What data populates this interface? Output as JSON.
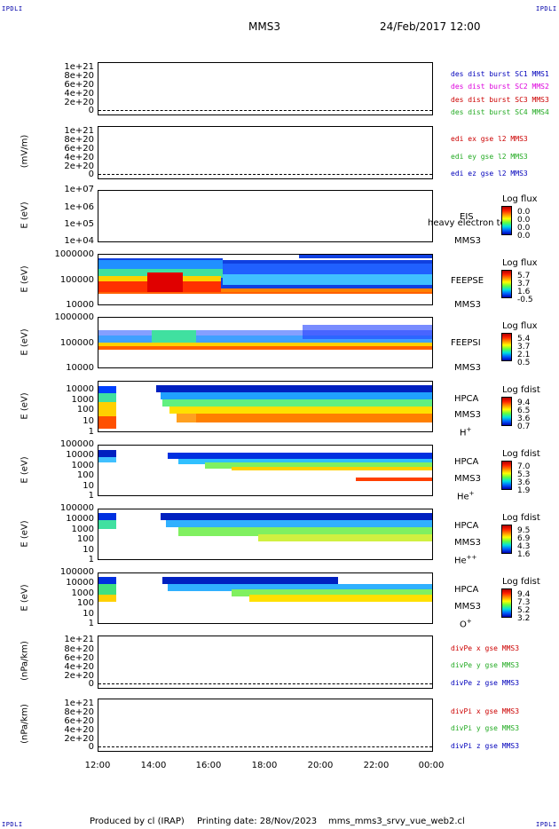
{
  "corners": {
    "tl": "IPDLI",
    "tr": "IPDLI",
    "bl": "IPDLI",
    "br": "IPDLI"
  },
  "header": {
    "spacecraft": "MMS3",
    "date": "24/Feb/2017 12:00"
  },
  "footer": {
    "produced": "Produced by cl (IRAP)",
    "printing": "Printing date: 28/Nov/2023",
    "file": "mms_mms3_srvy_vue_web2.cl"
  },
  "x_axis": {
    "ticks": [
      "12:00",
      "14:00",
      "16:00",
      "18:00",
      "20:00",
      "22:00",
      "00:00"
    ]
  },
  "colors": {
    "red": "#cc0000",
    "magenta": "#dd00dd",
    "blue": "#0000bb",
    "green": "#22aa22"
  },
  "panels": [
    {
      "id": "des",
      "ylabel": "",
      "yticks": [
        "1e+21",
        "8e+20",
        "6e+20",
        "4e+20",
        "2e+20",
        "0"
      ],
      "legend": [
        {
          "text": "des dist burst SC1 MMS1",
          "color": "#0000bb"
        },
        {
          "text": "des dist burst SC2 MMS2",
          "color": "#dd00dd"
        },
        {
          "text": "des dist burst SC3 MMS3",
          "color": "#cc0000"
        },
        {
          "text": "des dist burst SC4 MMS4",
          "color": "#22aa22"
        }
      ]
    },
    {
      "id": "edi",
      "ylabel": "(mV/m)",
      "yticks": [
        "1e+21",
        "8e+20",
        "6e+20",
        "4e+20",
        "2e+20",
        "0"
      ],
      "legend": [
        {
          "text": "edi ex gse l2 MMS3",
          "color": "#cc0000"
        },
        {
          "text": "edi ey gse l2 MMS3",
          "color": "#22aa22"
        },
        {
          "text": "edi ez gse l2 MMS3",
          "color": "#0000bb"
        }
      ]
    },
    {
      "id": "eis",
      "ylabel": "E (eV)",
      "yticks": [
        "1e+07",
        "1e+06",
        "1e+05",
        "1e+04"
      ],
      "instrument": [
        "EIS",
        "MMS3"
      ],
      "overlay": "heavy electron to",
      "cbar": {
        "title": "Log flux",
        "values": [
          "0.0",
          "0.0",
          "0.0",
          "0.0"
        ]
      }
    },
    {
      "id": "feepse",
      "ylabel": "E (eV)",
      "yticks": [
        "1000000",
        "100000",
        "10000"
      ],
      "instrument": [
        "FEEPSE",
        "MMS3"
      ],
      "cbar": {
        "title": "Log flux",
        "values": [
          "5.7",
          "3.7",
          "1.6",
          "-0.5"
        ]
      }
    },
    {
      "id": "feepsi",
      "ylabel": "E (eV)",
      "yticks": [
        "1000000",
        "100000",
        "10000"
      ],
      "instrument": [
        "FEEPSI",
        "MMS3"
      ],
      "cbar": {
        "title": "Log flux",
        "values": [
          "5.4",
          "3.7",
          "2.1",
          "0.5"
        ]
      }
    },
    {
      "id": "hpca_h",
      "ylabel": "E (eV)",
      "yticks": [
        "10000",
        "1000",
        "100",
        "10",
        "1"
      ],
      "instrument": [
        "HPCA",
        "MMS3",
        "H",
        "+"
      ],
      "cbar": {
        "title": "Log fdist",
        "values": [
          "9.4",
          "6.5",
          "3.6",
          "0.7"
        ]
      }
    },
    {
      "id": "hpca_he",
      "ylabel": "E (eV)",
      "yticks": [
        "100000",
        "10000",
        "1000",
        "100",
        "10",
        "1"
      ],
      "instrument": [
        "HPCA",
        "MMS3",
        "He",
        "+"
      ],
      "cbar": {
        "title": "Log fdist",
        "values": [
          "7.0",
          "5.3",
          "3.6",
          "1.9"
        ]
      }
    },
    {
      "id": "hpca_hepp",
      "ylabel": "E (eV)",
      "yticks": [
        "100000",
        "10000",
        "1000",
        "100",
        "10",
        "1"
      ],
      "instrument": [
        "HPCA",
        "MMS3",
        "He",
        "++"
      ],
      "cbar": {
        "title": "Log fdist",
        "values": [
          "9.5",
          "6.9",
          "4.3",
          "1.6"
        ]
      }
    },
    {
      "id": "hpca_o",
      "ylabel": "E (eV)",
      "yticks": [
        "100000",
        "10000",
        "1000",
        "100",
        "10",
        "1"
      ],
      "instrument": [
        "HPCA",
        "MMS3",
        "O",
        "+"
      ],
      "cbar": {
        "title": "Log fdist",
        "values": [
          "9.4",
          "7.3",
          "5.2",
          "3.2"
        ]
      }
    },
    {
      "id": "divpe",
      "ylabel": "(nPa/km)",
      "yticks": [
        "1e+21",
        "8e+20",
        "6e+20",
        "4e+20",
        "2e+20",
        "0"
      ],
      "legend": [
        {
          "text": "divPe x gse MMS3",
          "color": "#cc0000"
        },
        {
          "text": "divPe y gse MMS3",
          "color": "#22aa22"
        },
        {
          "text": "divPe z gse MMS3",
          "color": "#0000bb"
        }
      ]
    },
    {
      "id": "divpi",
      "ylabel": "(nPa/km)",
      "yticks": [
        "1e+21",
        "8e+20",
        "6e+20",
        "4e+20",
        "2e+20",
        "0"
      ],
      "legend": [
        {
          "text": "divPi x gse MMS3",
          "color": "#cc0000"
        },
        {
          "text": "divPi y gse MMS3",
          "color": "#22aa22"
        },
        {
          "text": "divPi z gse MMS3",
          "color": "#0000bb"
        }
      ]
    }
  ]
}
